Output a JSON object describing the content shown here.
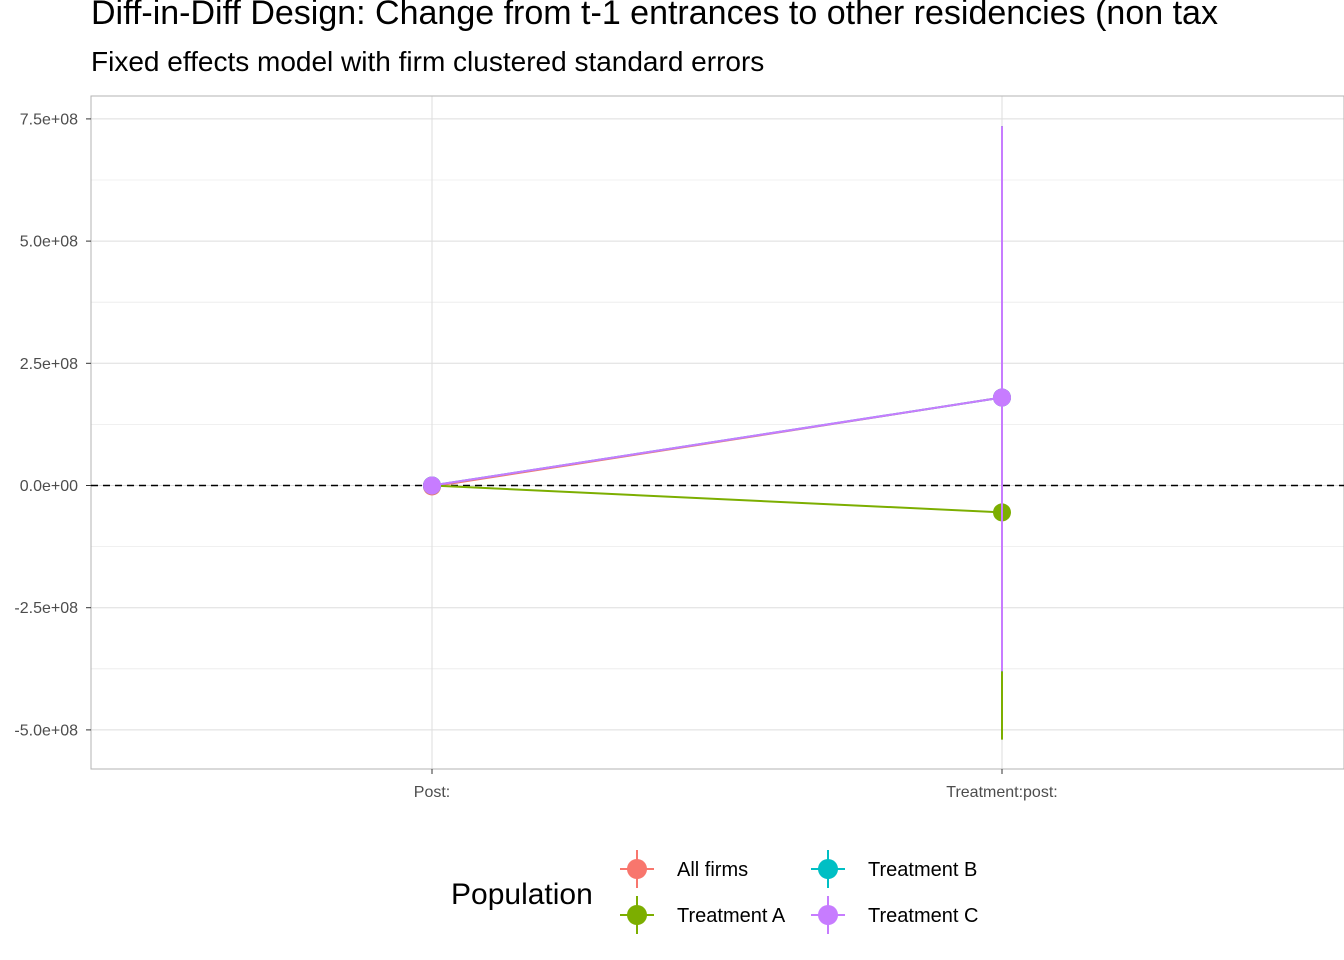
{
  "chart_data": {
    "type": "scatter",
    "title": "Diff-in-Diff Design: Change from t-1 entrances to other residencies (non tax",
    "subtitle": "Fixed effects model with firm clustered standard errors",
    "xlabel": "",
    "ylabel": "",
    "categories": [
      "Post:",
      "Treatment:post:"
    ],
    "ylim": [
      -580000000,
      800000000
    ],
    "y_ticks": [
      {
        "value": 750000000,
        "label": "7.5e+08"
      },
      {
        "value": 500000000,
        "label": "5.0e+08"
      },
      {
        "value": 250000000,
        "label": "2.5e+08"
      },
      {
        "value": 0,
        "label": "0.0e+00"
      },
      {
        "value": -250000000,
        "label": "-2.5e+08"
      },
      {
        "value": -500000000,
        "label": "-5.0e+08"
      }
    ],
    "reference_line": {
      "y": 0,
      "style": "dashed",
      "color": "#000000"
    },
    "grid": true,
    "legend": {
      "title": "Population",
      "position": "bottom"
    },
    "series": [
      {
        "name": "All firms",
        "color": "#F8766D",
        "values": [
          -2000000,
          180000000
        ],
        "ci_low": [
          -4000000,
          -380000000
        ],
        "ci_high": [
          0,
          735000000
        ]
      },
      {
        "name": "Treatment A",
        "color": "#7CAE00",
        "values": [
          0,
          -55000000
        ],
        "ci_low": [
          -2000000,
          -520000000
        ],
        "ci_high": [
          2000000,
          410000000
        ]
      },
      {
        "name": "Treatment B",
        "color": "#00BFC4",
        "values": [
          0,
          180000000
        ],
        "ci_low": [
          -2000000,
          -380000000
        ],
        "ci_high": [
          2000000,
          735000000
        ]
      },
      {
        "name": "Treatment C",
        "color": "#C77CFF",
        "values": [
          0,
          180000000
        ],
        "ci_low": [
          -2000000,
          -380000000
        ],
        "ci_high": [
          2000000,
          735000000
        ]
      }
    ]
  }
}
